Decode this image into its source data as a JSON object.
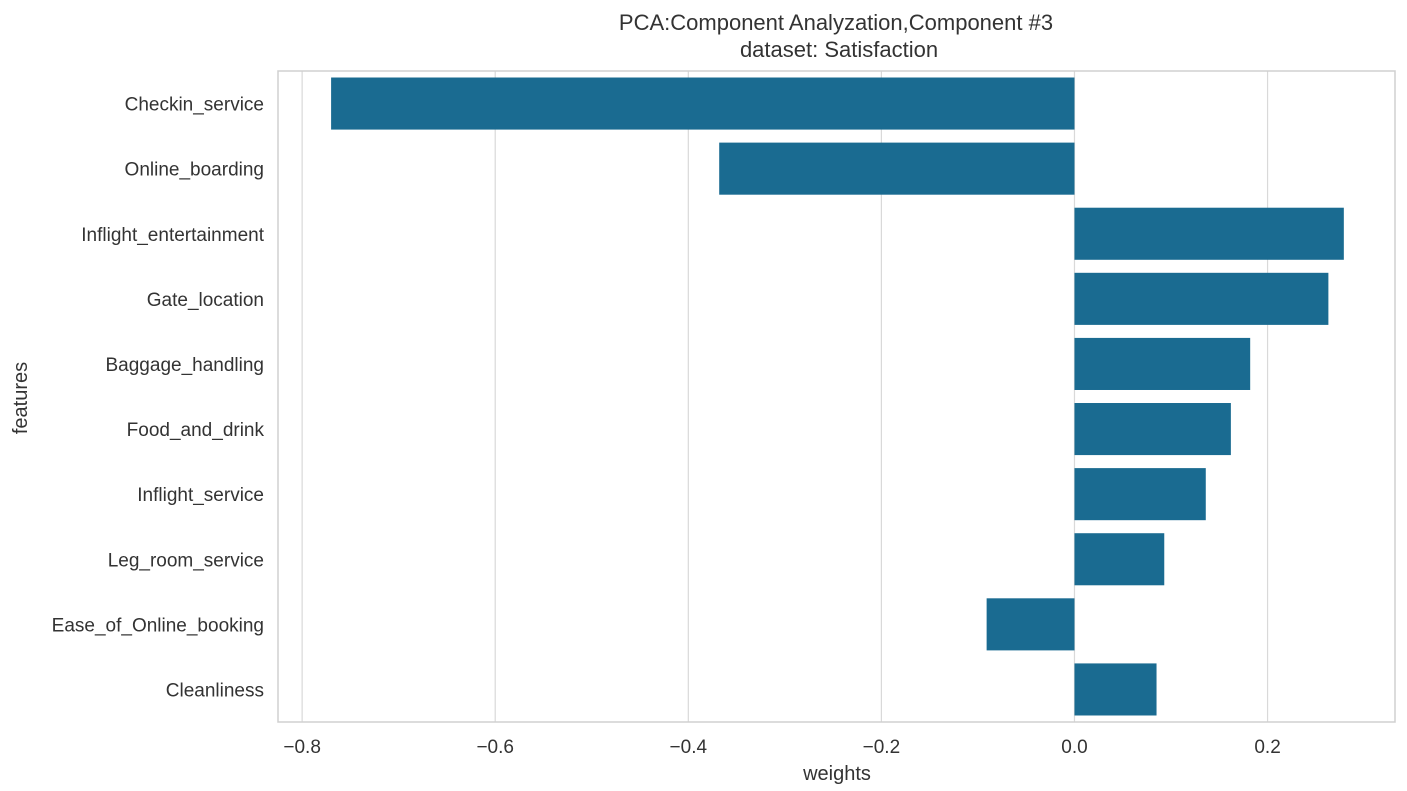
{
  "chart_data": {
    "type": "bar",
    "orientation": "horizontal",
    "title_line1": "PCA:Component Analyzation,Component #3",
    "title_line2": "dataset: Satisfaction",
    "xlabel": "weights",
    "ylabel": "features",
    "categories": [
      "Checkin_service",
      "Online_boarding",
      "Inflight_entertainment",
      "Gate_location",
      "Baggage_handling",
      "Food_and_drink",
      "Inflight_service",
      "Leg_room_service",
      "Ease_of_Online_booking",
      "Cleanliness"
    ],
    "values": [
      -0.77,
      -0.368,
      0.279,
      0.263,
      0.182,
      0.162,
      0.136,
      0.093,
      -0.091,
      0.085
    ],
    "xlim": [
      -0.825,
      0.332
    ],
    "xticks": [
      -0.8,
      -0.6,
      -0.4,
      -0.2,
      0.0,
      0.2
    ],
    "xtick_labels": [
      "−0.8",
      "−0.6",
      "−0.4",
      "−0.2",
      "0.0",
      "0.2"
    ],
    "grid": "vertical",
    "bar_color": "#1a6b91",
    "grid_color": "#d9d9d9",
    "spine_color": "#d0d0d0"
  }
}
